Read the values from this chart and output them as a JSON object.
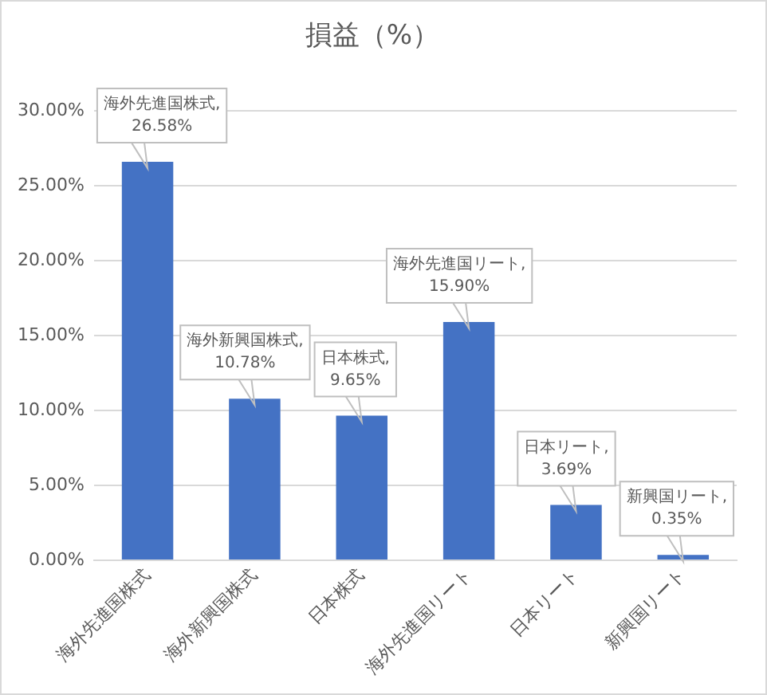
{
  "chart_data": {
    "type": "bar",
    "title": "損益（%）",
    "categories": [
      "海外先進国株式",
      "海外新興国株式",
      "日本株式",
      "海外先進国リート",
      "日本リート",
      "新興国リート"
    ],
    "values": [
      26.58,
      10.78,
      9.65,
      15.9,
      3.69,
      0.35
    ],
    "value_labels": [
      "海外先進国株式, 26.58%",
      "海外新興国株式, 10.78%",
      "日本株式, 9.65%",
      "海外先進国リート, 15.90%",
      "日本リート, 3.69%",
      "新興国リート, 0.35%"
    ],
    "color": "#4472c4",
    "ylim": [
      0,
      30
    ],
    "yticks": [
      {
        "value": 0,
        "label": "0.00%"
      },
      {
        "value": 5,
        "label": "5.00%"
      },
      {
        "value": 10,
        "label": "10.00%"
      },
      {
        "value": 15,
        "label": "15.00%"
      },
      {
        "value": 20,
        "label": "20.00%"
      },
      {
        "value": 25,
        "label": "25.00%"
      },
      {
        "value": 30,
        "label": "30.00%"
      }
    ],
    "grid": "y",
    "legend": false
  }
}
